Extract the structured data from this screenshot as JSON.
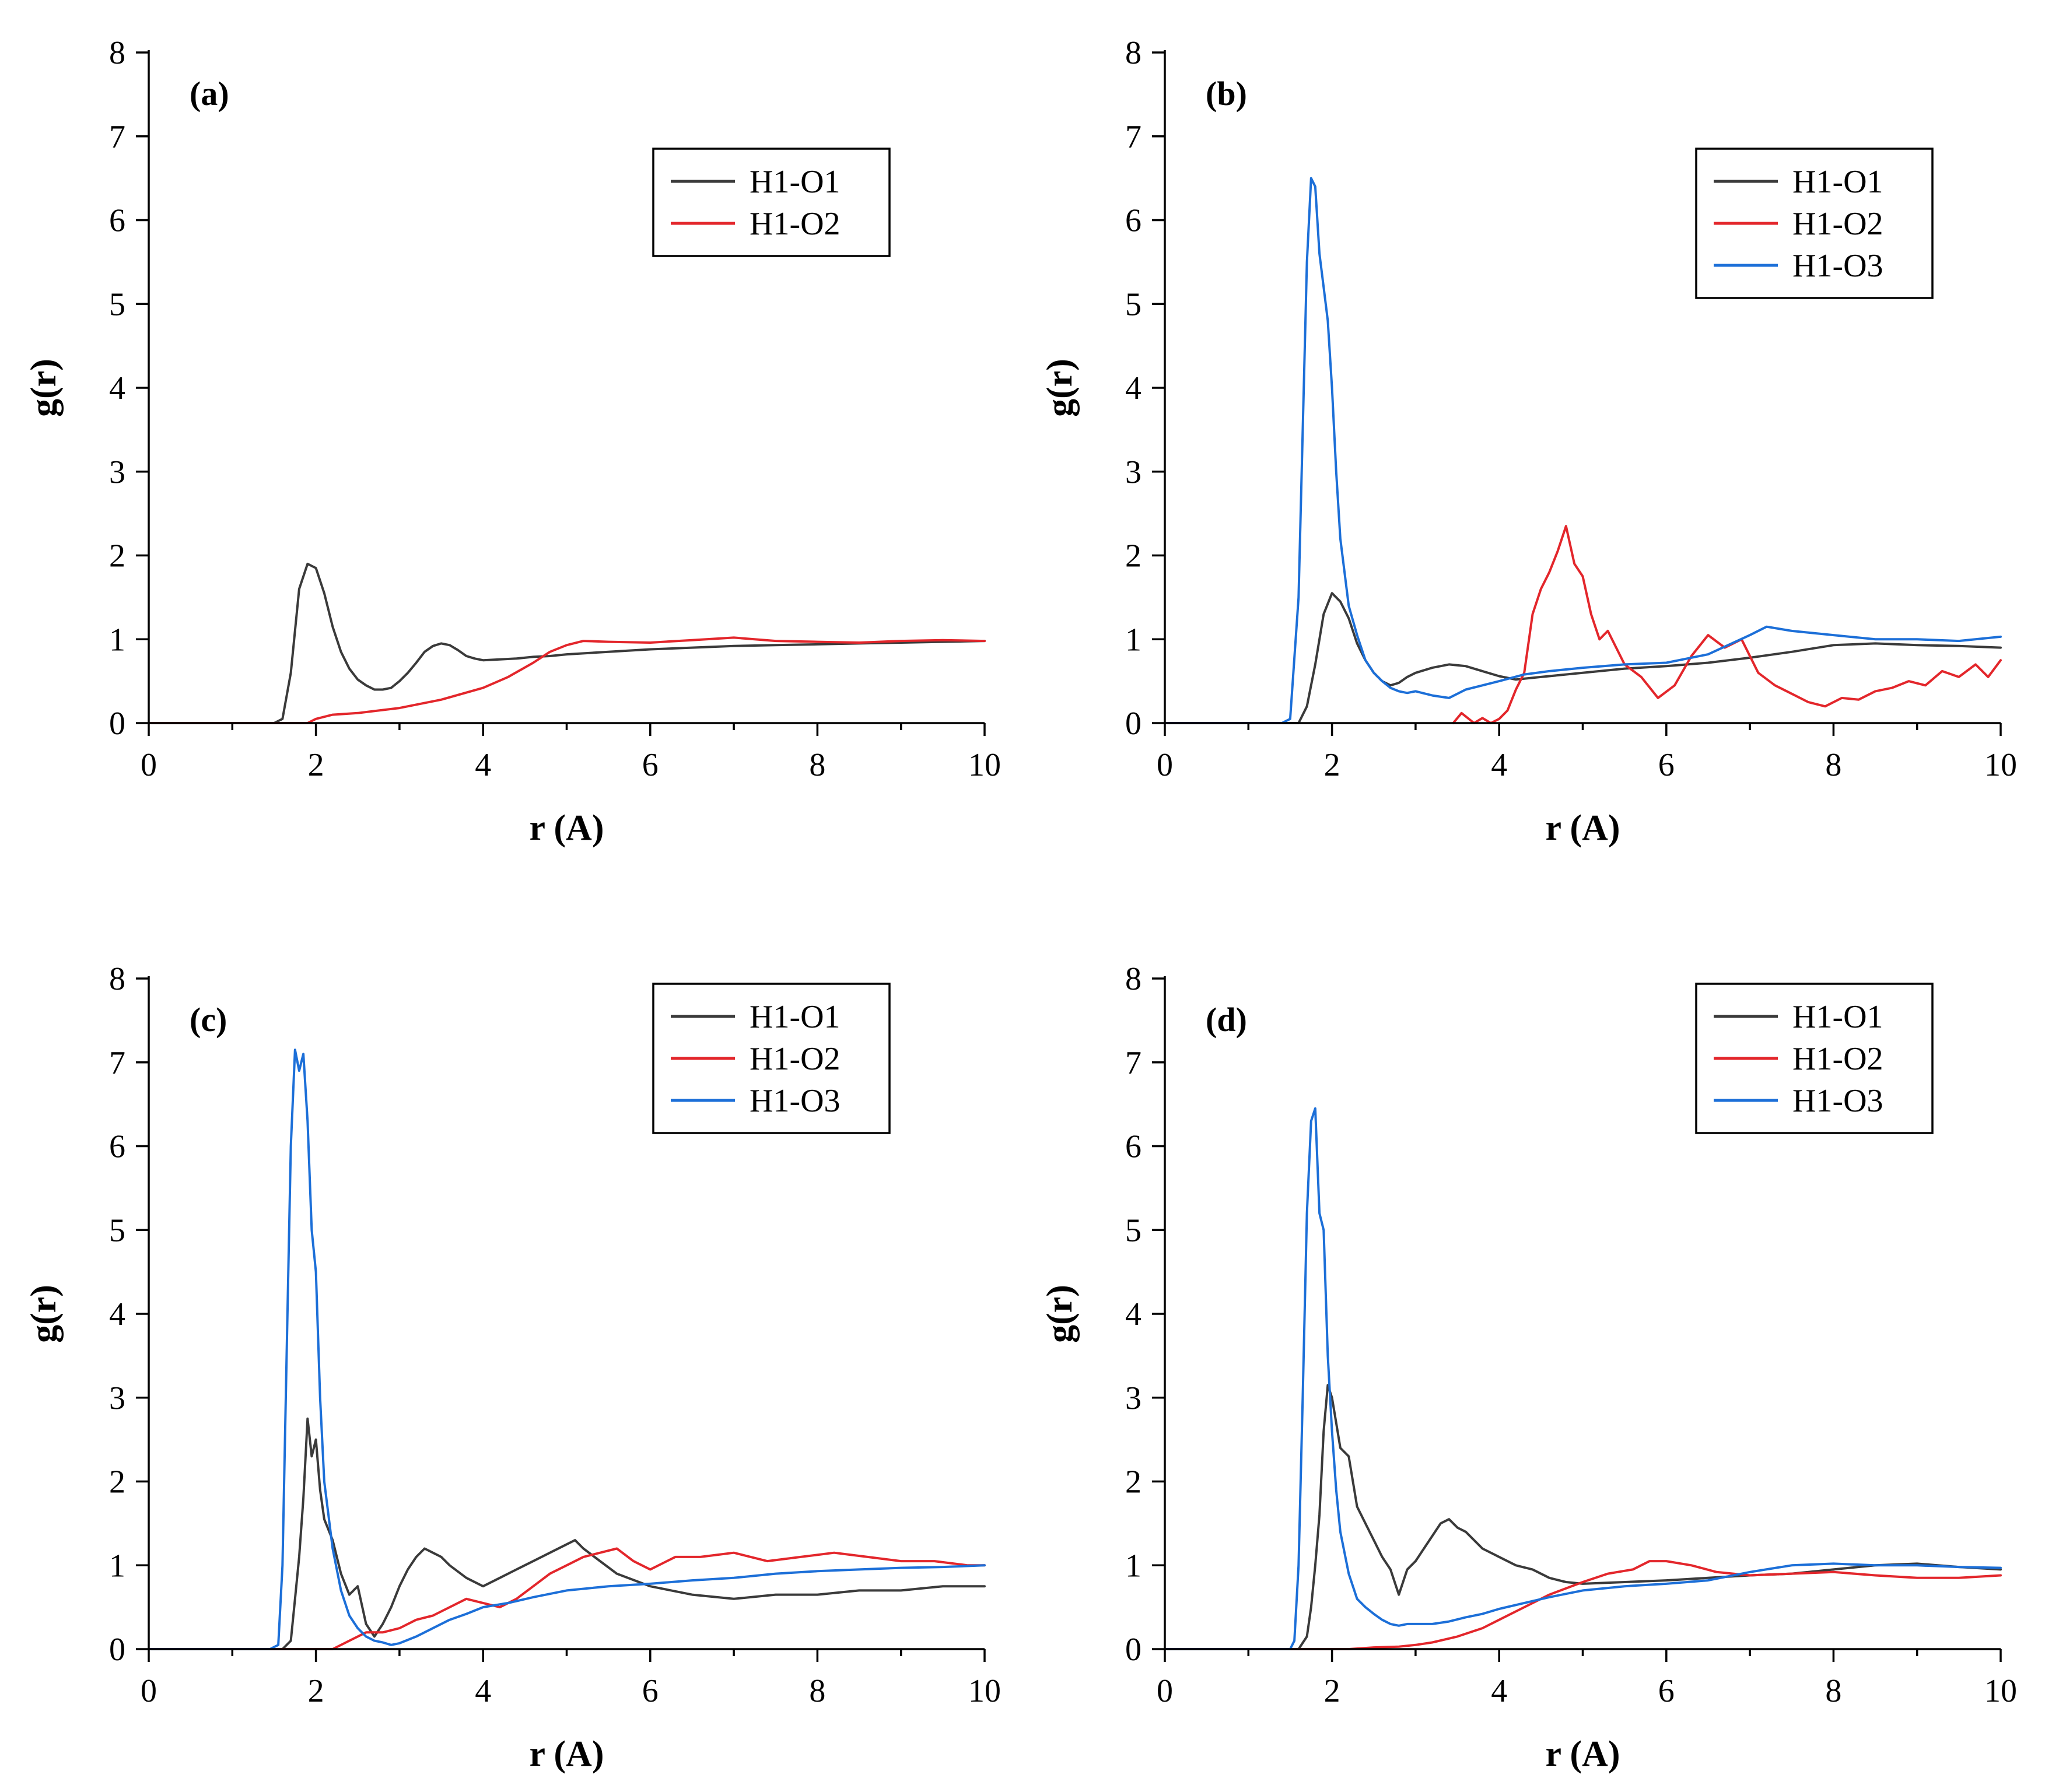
{
  "chart_data": [
    {
      "type": "line",
      "panel_label": "(a)",
      "xlabel": "r (A)",
      "ylabel": "g(r)",
      "xlim": [
        0,
        10
      ],
      "ylim": [
        0,
        8
      ],
      "xticks": [
        0,
        2,
        4,
        6,
        8,
        10
      ],
      "yticks": [
        0,
        1,
        2,
        3,
        4,
        5,
        6,
        7,
        8
      ],
      "legend_position": "top-right",
      "series": [
        {
          "name": "H1-O1",
          "color": "#3a3a3a",
          "x": [
            0,
            1.5,
            1.6,
            1.7,
            1.8,
            1.9,
            2.0,
            2.1,
            2.2,
            2.3,
            2.4,
            2.5,
            2.6,
            2.7,
            2.8,
            2.9,
            3.0,
            3.1,
            3.2,
            3.3,
            3.4,
            3.5,
            3.6,
            3.7,
            3.8,
            3.9,
            4.0,
            4.2,
            4.4,
            4.6,
            4.8,
            5.0,
            5.5,
            6.0,
            6.5,
            7.0,
            7.5,
            8.0,
            8.5,
            9.0,
            9.5,
            10.0
          ],
          "y": [
            0,
            0,
            0.05,
            0.6,
            1.6,
            1.9,
            1.85,
            1.55,
            1.15,
            0.85,
            0.65,
            0.52,
            0.45,
            0.4,
            0.4,
            0.42,
            0.5,
            0.6,
            0.72,
            0.85,
            0.92,
            0.95,
            0.93,
            0.87,
            0.8,
            0.77,
            0.75,
            0.76,
            0.77,
            0.79,
            0.8,
            0.82,
            0.85,
            0.88,
            0.9,
            0.92,
            0.93,
            0.94,
            0.95,
            0.96,
            0.97,
            0.98
          ]
        },
        {
          "name": "H1-O2",
          "color": "#e3262b",
          "x": [
            0,
            1.9,
            2.0,
            2.2,
            2.5,
            3.0,
            3.5,
            4.0,
            4.3,
            4.6,
            4.8,
            5.0,
            5.2,
            5.5,
            6.0,
            6.5,
            7.0,
            7.5,
            8.0,
            8.5,
            9.0,
            9.5,
            10.0
          ],
          "y": [
            0,
            0,
            0.05,
            0.1,
            0.12,
            0.18,
            0.28,
            0.42,
            0.55,
            0.72,
            0.85,
            0.93,
            0.98,
            0.97,
            0.96,
            0.99,
            1.02,
            0.98,
            0.97,
            0.96,
            0.98,
            0.99,
            0.98
          ]
        }
      ]
    },
    {
      "type": "line",
      "panel_label": "(b)",
      "xlabel": "r (A)",
      "ylabel": "g(r)",
      "xlim": [
        0,
        10
      ],
      "ylim": [
        0,
        8
      ],
      "xticks": [
        0,
        2,
        4,
        6,
        8,
        10
      ],
      "yticks": [
        0,
        1,
        2,
        3,
        4,
        5,
        6,
        7,
        8
      ],
      "legend_position": "top-right",
      "series": [
        {
          "name": "H1-O1",
          "color": "#3a3a3a",
          "x": [
            0,
            1.6,
            1.7,
            1.8,
            1.9,
            2.0,
            2.1,
            2.2,
            2.3,
            2.4,
            2.5,
            2.6,
            2.7,
            2.8,
            2.9,
            3.0,
            3.2,
            3.4,
            3.6,
            3.8,
            4.0,
            4.2,
            4.5,
            5.0,
            5.5,
            6.0,
            6.5,
            7.0,
            7.5,
            8.0,
            8.5,
            9.0,
            9.5,
            10.0
          ],
          "y": [
            0,
            0,
            0.2,
            0.7,
            1.3,
            1.55,
            1.45,
            1.25,
            0.95,
            0.75,
            0.6,
            0.5,
            0.45,
            0.48,
            0.55,
            0.6,
            0.66,
            0.7,
            0.68,
            0.62,
            0.56,
            0.52,
            0.55,
            0.6,
            0.65,
            0.68,
            0.72,
            0.78,
            0.85,
            0.93,
            0.95,
            0.93,
            0.92,
            0.9
          ]
        },
        {
          "name": "H1-O2",
          "color": "#e3262b",
          "x": [
            3.45,
            3.55,
            3.7,
            3.8,
            3.9,
            4.0,
            4.1,
            4.2,
            4.3,
            4.4,
            4.5,
            4.6,
            4.7,
            4.8,
            4.9,
            5.0,
            5.1,
            5.2,
            5.3,
            5.5,
            5.7,
            5.9,
            6.1,
            6.3,
            6.5,
            6.7,
            6.9,
            7.1,
            7.3,
            7.5,
            7.7,
            7.9,
            8.1,
            8.3,
            8.5,
            8.7,
            8.9,
            9.1,
            9.3,
            9.5,
            9.7,
            9.85,
            10.0
          ],
          "y": [
            0,
            0.12,
            0,
            0.06,
            0,
            0.05,
            0.15,
            0.4,
            0.6,
            1.3,
            1.6,
            1.8,
            2.05,
            2.35,
            1.9,
            1.75,
            1.3,
            1.0,
            1.1,
            0.7,
            0.55,
            0.3,
            0.45,
            0.8,
            1.05,
            0.9,
            1.0,
            0.6,
            0.45,
            0.35,
            0.25,
            0.2,
            0.3,
            0.28,
            0.38,
            0.42,
            0.5,
            0.45,
            0.62,
            0.55,
            0.7,
            0.55,
            0.75
          ]
        },
        {
          "name": "H1-O3",
          "color": "#1c6fd8",
          "x": [
            0,
            1.4,
            1.5,
            1.6,
            1.7,
            1.75,
            1.8,
            1.85,
            1.9,
            1.95,
            2.0,
            2.05,
            2.1,
            2.2,
            2.3,
            2.4,
            2.5,
            2.6,
            2.7,
            2.8,
            2.9,
            3.0,
            3.2,
            3.4,
            3.6,
            3.8,
            4.0,
            4.3,
            4.6,
            5.0,
            5.5,
            6.0,
            6.5,
            7.0,
            7.2,
            7.5,
            8.0,
            8.5,
            9.0,
            9.5,
            10.0
          ],
          "y": [
            0,
            0,
            0.05,
            1.5,
            5.5,
            6.5,
            6.4,
            5.6,
            5.2,
            4.8,
            4.0,
            3.0,
            2.2,
            1.4,
            1.05,
            0.75,
            0.6,
            0.5,
            0.42,
            0.38,
            0.36,
            0.38,
            0.33,
            0.3,
            0.4,
            0.45,
            0.5,
            0.58,
            0.62,
            0.66,
            0.7,
            0.72,
            0.82,
            1.05,
            1.15,
            1.1,
            1.05,
            1.0,
            1.0,
            0.98,
            1.03
          ]
        }
      ]
    },
    {
      "type": "line",
      "panel_label": "(c)",
      "xlabel": "r (A)",
      "ylabel": "g(r)",
      "xlim": [
        0,
        10
      ],
      "ylim": [
        0,
        8
      ],
      "xticks": [
        0,
        2,
        4,
        6,
        8,
        10
      ],
      "yticks": [
        0,
        1,
        2,
        3,
        4,
        5,
        6,
        7,
        8
      ],
      "legend_position": "top-right",
      "series": [
        {
          "name": "H1-O1",
          "color": "#3a3a3a",
          "x": [
            0,
            1.6,
            1.7,
            1.75,
            1.8,
            1.85,
            1.9,
            1.95,
            2.0,
            2.05,
            2.1,
            2.2,
            2.3,
            2.4,
            2.5,
            2.6,
            2.7,
            2.8,
            2.9,
            3.0,
            3.1,
            3.2,
            3.3,
            3.4,
            3.5,
            3.6,
            3.8,
            4.0,
            4.2,
            4.4,
            4.6,
            4.8,
            5.0,
            5.1,
            5.2,
            5.4,
            5.6,
            6.0,
            6.5,
            7.0,
            7.5,
            8.0,
            8.5,
            9.0,
            9.5,
            10.0
          ],
          "y": [
            0,
            0,
            0.1,
            0.6,
            1.1,
            1.8,
            2.75,
            2.3,
            2.5,
            1.9,
            1.55,
            1.3,
            0.9,
            0.65,
            0.75,
            0.3,
            0.15,
            0.3,
            0.5,
            0.75,
            0.95,
            1.1,
            1.2,
            1.15,
            1.1,
            1.0,
            0.85,
            0.75,
            0.85,
            0.95,
            1.05,
            1.15,
            1.25,
            1.3,
            1.2,
            1.05,
            0.9,
            0.75,
            0.65,
            0.6,
            0.65,
            0.65,
            0.7,
            0.7,
            0.75,
            0.75
          ]
        },
        {
          "name": "H1-O2",
          "color": "#e3262b",
          "x": [
            0,
            2.2,
            2.4,
            2.6,
            2.8,
            3.0,
            3.2,
            3.4,
            3.6,
            3.8,
            4.0,
            4.2,
            4.4,
            4.6,
            4.8,
            5.0,
            5.2,
            5.4,
            5.6,
            5.8,
            6.0,
            6.3,
            6.6,
            7.0,
            7.4,
            7.8,
            8.2,
            8.6,
            9.0,
            9.4,
            9.8,
            10.0
          ],
          "y": [
            0,
            0,
            0.1,
            0.2,
            0.2,
            0.25,
            0.35,
            0.4,
            0.5,
            0.6,
            0.55,
            0.5,
            0.6,
            0.75,
            0.9,
            1.0,
            1.1,
            1.15,
            1.2,
            1.05,
            0.95,
            1.1,
            1.1,
            1.15,
            1.05,
            1.1,
            1.15,
            1.1,
            1.05,
            1.05,
            1.0,
            1.0
          ]
        },
        {
          "name": "H1-O3",
          "color": "#1c6fd8",
          "x": [
            0,
            1.45,
            1.55,
            1.6,
            1.65,
            1.7,
            1.75,
            1.8,
            1.85,
            1.9,
            1.95,
            2.0,
            2.05,
            2.1,
            2.2,
            2.3,
            2.4,
            2.5,
            2.6,
            2.7,
            2.8,
            2.9,
            3.0,
            3.2,
            3.4,
            3.6,
            3.8,
            4.0,
            4.3,
            4.6,
            5.0,
            5.5,
            6.0,
            6.5,
            7.0,
            7.5,
            8.0,
            8.5,
            9.0,
            9.5,
            10.0
          ],
          "y": [
            0,
            0,
            0.05,
            1.0,
            3.5,
            6.0,
            7.15,
            6.9,
            7.1,
            6.3,
            5.0,
            4.5,
            3.0,
            2.0,
            1.2,
            0.7,
            0.4,
            0.25,
            0.15,
            0.1,
            0.08,
            0.05,
            0.07,
            0.15,
            0.25,
            0.35,
            0.42,
            0.5,
            0.55,
            0.62,
            0.7,
            0.75,
            0.78,
            0.82,
            0.85,
            0.9,
            0.93,
            0.95,
            0.97,
            0.98,
            1.0
          ]
        }
      ]
    },
    {
      "type": "line",
      "panel_label": "(d)",
      "xlabel": "r (A)",
      "ylabel": "g(r)",
      "xlim": [
        0,
        10
      ],
      "ylim": [
        0,
        8
      ],
      "xticks": [
        0,
        2,
        4,
        6,
        8,
        10
      ],
      "yticks": [
        0,
        1,
        2,
        3,
        4,
        5,
        6,
        7,
        8
      ],
      "legend_position": "top-right",
      "series": [
        {
          "name": "H1-O1",
          "color": "#3a3a3a",
          "x": [
            0,
            1.6,
            1.7,
            1.75,
            1.8,
            1.85,
            1.9,
            1.95,
            2.0,
            2.05,
            2.1,
            2.2,
            2.3,
            2.4,
            2.5,
            2.6,
            2.7,
            2.8,
            2.9,
            3.0,
            3.1,
            3.2,
            3.3,
            3.4,
            3.5,
            3.6,
            3.8,
            4.0,
            4.2,
            4.4,
            4.6,
            4.8,
            5.0,
            5.5,
            6.0,
            6.5,
            7.0,
            7.5,
            8.0,
            8.5,
            9.0,
            9.5,
            10.0
          ],
          "y": [
            0,
            0,
            0.15,
            0.5,
            1.0,
            1.6,
            2.6,
            3.15,
            3.0,
            2.7,
            2.4,
            2.3,
            1.7,
            1.5,
            1.3,
            1.1,
            0.95,
            0.65,
            0.95,
            1.05,
            1.2,
            1.35,
            1.5,
            1.55,
            1.45,
            1.4,
            1.2,
            1.1,
            1.0,
            0.95,
            0.85,
            0.8,
            0.78,
            0.8,
            0.82,
            0.85,
            0.88,
            0.9,
            0.95,
            1.0,
            1.02,
            0.98,
            0.95
          ]
        },
        {
          "name": "H1-O2",
          "color": "#e3262b",
          "x": [
            0,
            2.2,
            2.5,
            2.8,
            3.0,
            3.2,
            3.5,
            3.8,
            4.0,
            4.3,
            4.6,
            5.0,
            5.3,
            5.6,
            5.8,
            6.0,
            6.3,
            6.6,
            7.0,
            7.5,
            8.0,
            8.5,
            9.0,
            9.5,
            10.0
          ],
          "y": [
            0,
            0,
            0.02,
            0.03,
            0.05,
            0.08,
            0.15,
            0.25,
            0.35,
            0.5,
            0.65,
            0.8,
            0.9,
            0.95,
            1.05,
            1.05,
            1.0,
            0.92,
            0.88,
            0.9,
            0.92,
            0.88,
            0.85,
            0.85,
            0.88
          ]
        },
        {
          "name": "H1-O3",
          "color": "#1c6fd8",
          "x": [
            0,
            1.5,
            1.55,
            1.6,
            1.65,
            1.7,
            1.75,
            1.8,
            1.85,
            1.9,
            1.95,
            2.0,
            2.05,
            2.1,
            2.2,
            2.3,
            2.4,
            2.5,
            2.6,
            2.7,
            2.8,
            2.9,
            3.0,
            3.2,
            3.4,
            3.6,
            3.8,
            4.0,
            4.3,
            4.6,
            5.0,
            5.5,
            6.0,
            6.5,
            7.0,
            7.5,
            8.0,
            8.5,
            9.0,
            9.5,
            10.0
          ],
          "y": [
            0,
            0,
            0.1,
            1.0,
            3.0,
            5.2,
            6.3,
            6.45,
            5.2,
            5.0,
            3.5,
            2.6,
            1.9,
            1.4,
            0.9,
            0.6,
            0.5,
            0.42,
            0.35,
            0.3,
            0.28,
            0.3,
            0.3,
            0.3,
            0.33,
            0.38,
            0.42,
            0.48,
            0.55,
            0.62,
            0.7,
            0.75,
            0.78,
            0.82,
            0.92,
            1.0,
            1.02,
            1.0,
            1.0,
            0.98,
            0.97
          ]
        }
      ]
    }
  ]
}
